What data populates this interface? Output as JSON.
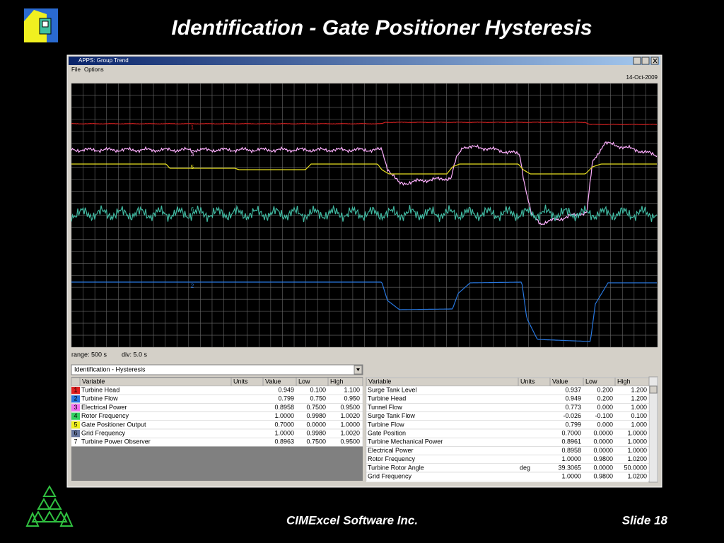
{
  "slide": {
    "title": "Identification - Gate Positioner Hysteresis",
    "footer": "CIMExcel Software Inc.",
    "slide_number": "Slide 18"
  },
  "window": {
    "title": "APPS: Group Trend",
    "menu": [
      "File",
      "Options"
    ],
    "date": "14-Oct-2009",
    "range": "range:  500 s",
    "div": "div:  5.0 s",
    "selector": "Identification - Hysteresis"
  },
  "trend_labels": [
    {
      "text": "1",
      "color": "#d02020"
    },
    {
      "text": "3",
      "color": "#ffb0ff"
    },
    {
      "text": "5",
      "color": "#e8e020"
    },
    {
      "text": "6",
      "color": "#40b8a0"
    },
    {
      "text": "2",
      "color": "#2878e0"
    }
  ],
  "left_table": {
    "columns": [
      "Variable",
      "Units",
      "Value",
      "Low",
      "High"
    ],
    "rows": [
      [
        "1",
        "Turbine Head",
        null,
        "0.949",
        "0.100",
        "1.100"
      ],
      [
        "2",
        "Turbine Flow",
        null,
        "0.799",
        "0.750",
        "0.950"
      ],
      [
        "3",
        "Electrical Power",
        null,
        "0.8958",
        "0.7500",
        "0.9500"
      ],
      [
        "4",
        "Rotor Frequency",
        null,
        "1.0000",
        "0.9980",
        "1.0020"
      ],
      [
        "5",
        "Gate Positioner Output",
        null,
        "0.7000",
        "0.0000",
        "1.0000"
      ],
      [
        "6",
        "Grid Frequency",
        null,
        "1.0000",
        "0.9980",
        "1.0020"
      ],
      [
        "7",
        "Turbine Power Observer",
        null,
        "0.8963",
        "0.7500",
        "0.9500"
      ]
    ],
    "colors": [
      "#e02020",
      "#2878e0",
      "#f070f0",
      "#30d060",
      "#f0f020",
      "#6878a0",
      "#ffffff"
    ]
  },
  "right_table": {
    "columns": [
      "Variable",
      "Units",
      "Value",
      "Low",
      "High"
    ],
    "rows": [
      [
        "Surge Tank Level",
        null,
        "0.937",
        "0.200",
        "1.200"
      ],
      [
        "Turbine Head",
        null,
        "0.949",
        "0.200",
        "1.200"
      ],
      [
        "Tunnel Flow",
        null,
        "0.773",
        "0.000",
        "1.000"
      ],
      [
        "Surge Tank Flow",
        null,
        "-0.026",
        "-0.100",
        "0.100"
      ],
      [
        "Turbine Flow",
        null,
        "0.799",
        "0.000",
        "1.000"
      ],
      [
        "Gate Position",
        null,
        "0.7000",
        "0.0000",
        "1.0000"
      ],
      [
        "Turbine Mechanical Power",
        null,
        "0.8961",
        "0.0000",
        "1.0000"
      ],
      [
        "Electrical Power",
        null,
        "0.8958",
        "0.0000",
        "1.0000"
      ],
      [
        "Rotor Frequency",
        null,
        "1.0000",
        "0.9800",
        "1.0200"
      ],
      [
        "Turbine Rotor Angle",
        "deg",
        "39.3065",
        "0.0000",
        "50.0000"
      ],
      [
        "Grid Frequency",
        null,
        "1.0000",
        "0.9800",
        "1.0200"
      ]
    ]
  }
}
